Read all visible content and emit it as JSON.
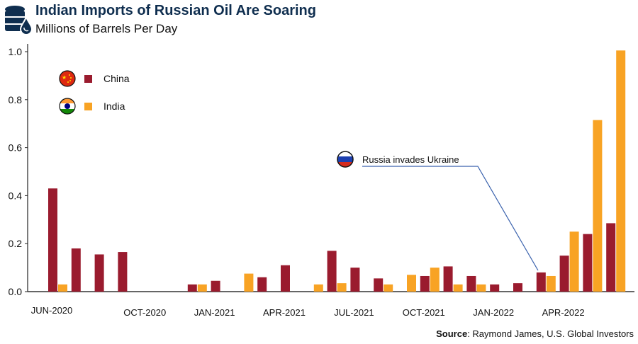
{
  "header": {
    "title": "Indian Imports of Russian Oil Are Soaring",
    "subtitle": "Millions of Barrels Per Day"
  },
  "source": {
    "label": "Source",
    "text": ": Raymond James, U.S. Global Investors"
  },
  "colors": {
    "china": "#9a1b2e",
    "india": "#f8a324",
    "title": "#0f2e4f",
    "annotation_line": "#3a62ad"
  },
  "chart_data": {
    "type": "bar",
    "title": "Indian Imports of Russian Oil Are Soaring",
    "ylabel": "Millions of Barrels Per Day",
    "xlabel": "",
    "ylim": [
      0,
      1.0
    ],
    "yticks": [
      "0.0",
      "0.2",
      "0.4",
      "0.6",
      "0.8",
      "1.0"
    ],
    "legend_position": "top-left",
    "grid": false,
    "categories": [
      "Jun-2020",
      "Jul-2020",
      "Aug-2020",
      "Sep-2020",
      "Oct-2020",
      "Nov-2020",
      "Dec-2020",
      "Jan-2021",
      "Feb-2021",
      "Mar-2021",
      "Apr-2021",
      "May-2021",
      "Jun-2021",
      "Jul-2021",
      "Aug-2021",
      "Sep-2021",
      "Oct-2021",
      "Nov-2021",
      "Dec-2021",
      "Jan-2022",
      "Feb-2022",
      "Mar-2022",
      "Apr-2022",
      "May-2022",
      "Jun-2022"
    ],
    "xtick_labels": [
      {
        "index": 0,
        "label": "JUN-2020"
      },
      {
        "index": 4,
        "label": "OCT-2020"
      },
      {
        "index": 7,
        "label": "JAN-2021"
      },
      {
        "index": 10,
        "label": "APR-2021"
      },
      {
        "index": 13,
        "label": "JUL-2021"
      },
      {
        "index": 16,
        "label": "OCT-2021"
      },
      {
        "index": 19,
        "label": "JAN-2022"
      },
      {
        "index": 22,
        "label": "APR-2022"
      }
    ],
    "series": [
      {
        "name": "China",
        "values": [
          0.43,
          0.18,
          0.155,
          0.165,
          0,
          0,
          0.03,
          0.045,
          0,
          0.06,
          0.11,
          0,
          0.17,
          0.1,
          0.055,
          0,
          0.065,
          0.105,
          0.065,
          0.03,
          0.035,
          0.08,
          0.15,
          0.24,
          0.285
        ]
      },
      {
        "name": "India",
        "values": [
          0.03,
          0,
          0,
          0,
          0,
          0,
          0.03,
          0,
          0.075,
          0,
          0,
          0.03,
          0.035,
          0,
          0.03,
          0.07,
          0.1,
          0.03,
          0.03,
          0,
          0,
          0.065,
          0.25,
          0.715,
          1.005
        ]
      }
    ],
    "annotations": [
      {
        "text": "Russia invades Ukraine",
        "index": 21
      }
    ]
  }
}
